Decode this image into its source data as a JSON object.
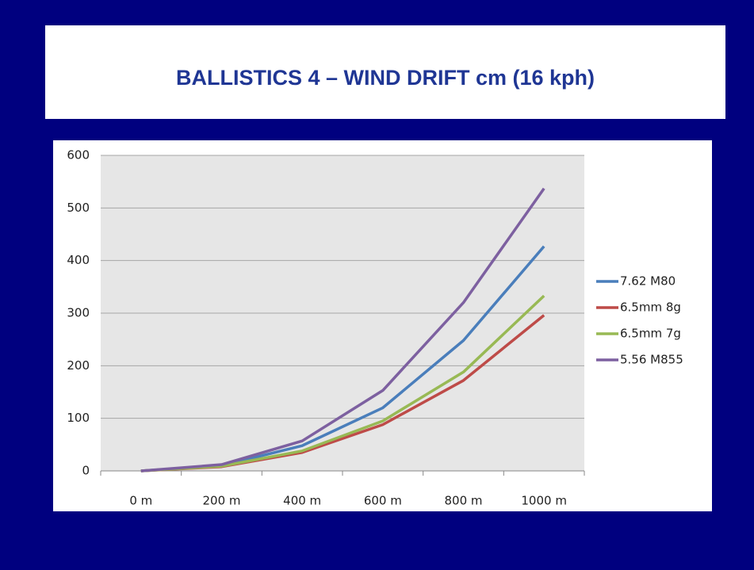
{
  "chart_data": {
    "type": "line",
    "title": "BALLISTICS 4 – WIND DRIFT cm (16 kph)",
    "categories": [
      "0 m",
      "200 m",
      "400 m",
      "600 m",
      "800 m",
      "1000 m"
    ],
    "series": [
      {
        "name": "7.62 M80",
        "color": "#4a7ebb",
        "values": [
          0,
          10,
          48,
          120,
          248,
          427
        ]
      },
      {
        "name": "6.5mm 8g",
        "color": "#be4b48",
        "values": [
          0,
          8,
          35,
          88,
          172,
          296
        ]
      },
      {
        "name": "6.5mm 7g",
        "color": "#98b954",
        "values": [
          0,
          9,
          38,
          95,
          188,
          333
        ]
      },
      {
        "name": "5.56 M855",
        "color": "#7d60a0",
        "values": [
          0,
          12,
          57,
          153,
          320,
          537
        ]
      }
    ],
    "ylim": [
      0,
      600
    ],
    "yticks": [
      0,
      100,
      200,
      300,
      400,
      500,
      600
    ],
    "grid": true,
    "legend": "right"
  }
}
